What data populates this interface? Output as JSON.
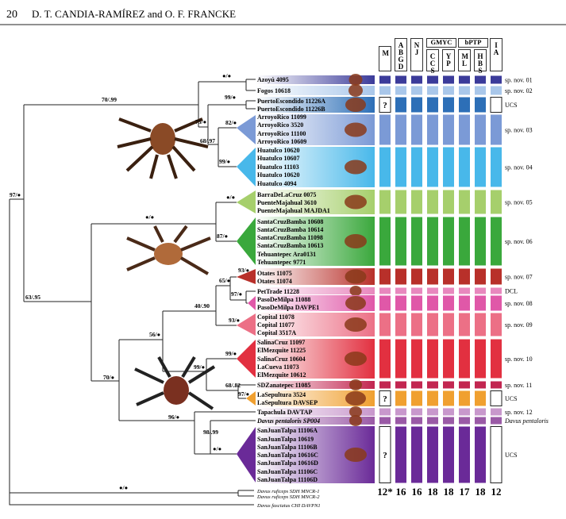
{
  "header": {
    "page": "20",
    "authors": "D. T. CANDIA-RAMÍREZ and O. F. FRANCKE"
  },
  "columns": {
    "groups": [
      "GMYC",
      "bPTP"
    ],
    "headers": [
      "M",
      "ABGD",
      "NJ",
      "CCS",
      "YP",
      "ML",
      "HBS",
      "IA"
    ],
    "totals": [
      "12*",
      16,
      16,
      18,
      18,
      17,
      18,
      12
    ]
  },
  "taxa": [
    "Azoyú 4095",
    "Fogos 10618",
    "PuertoEscondido 11226A",
    "PuertoEscondido 11226B",
    "ArroyoRico 11099",
    "ArroyoRico 3520",
    "ArroyoRico 11100",
    "ArroyoRico 10609",
    "Huatulco 10620",
    "Huatulco 10607",
    "Huatulco 11103",
    "Huatulco 10620",
    "Huatulco 4094",
    "BarraDeLaCruz 0075",
    "PuenteMajahual 3610",
    "PuenteMajahual MAJDA1",
    "SantaCruzBamba 10608",
    "SantaCruzBamba 10614",
    "SantaCruzBamba 11098",
    "SantaCruzBamba 10613",
    "Tehuantepec Ara0131",
    "Tehuantepec 9771",
    "Otates 11075",
    "Otates 11074",
    "PetTrade 11228",
    "PasoDeMilpa 11088",
    "PasoDeMilpa DAVPE1",
    "Copital 11078",
    "Copital 11077",
    "Copital 3517A",
    "SalinaCruz 11097",
    "ElMezquite 11225",
    "SalinaCruz 10604",
    "LaCueva 11073",
    "ElMezquite 10612",
    "SDZanatepec 11085",
    "LaSepultura 3524",
    "LaSepultura DAVSEP",
    "Tapachula DAVTAP",
    "Davus pentaloris SP004",
    "SanJuanTalpa 11106A",
    "SanJuanTalpa 10619",
    "SanJuanTalpa 11106B",
    "SanJuanTalpa 10616C",
    "SanJuanTalpa 10616D",
    "SanJuanTalpa 11106C",
    "SanJuanTalpa 11106D",
    "Davus ruficeps SDH MNCR-1",
    "Davus ruficeps SDH MNCR-2",
    "Davus fasciatus CHI DAVPN1"
  ],
  "supports": [
    "●/●",
    "70/.99",
    "99/●",
    "75/●",
    "82/●",
    "68/.97",
    "99/●",
    "97/●",
    "●/●",
    "●/●",
    "87/●",
    "63/.95",
    "93/●",
    "65/●",
    "97/●",
    "40/.90",
    "93/●",
    "56/●",
    "99/●",
    "99/●",
    "70/●",
    "68/.82",
    "97/●",
    "96/●",
    "98/.99",
    "●/●",
    "●/●"
  ],
  "clades": [
    {
      "label": "sp. nov. 01"
    },
    {
      "label": "sp. nov. 02"
    },
    {
      "label": "UCS",
      "m": "?"
    },
    {
      "label": "sp. nov. 03"
    },
    {
      "label": "sp. nov. 04"
    },
    {
      "label": "sp. nov. 05"
    },
    {
      "label": "sp. nov. 06"
    },
    {
      "label": "sp. nov. 07"
    },
    {
      "label": "DCL"
    },
    {
      "label": "sp. nov. 08"
    },
    {
      "label": "sp. nov. 09"
    },
    {
      "label": "sp. nov. 10"
    },
    {
      "label": "sp. nov. 11"
    },
    {
      "label": "UCS",
      "m": "?"
    },
    {
      "label": "sp. nov. 12"
    },
    {
      "label": "Davus pentaloris"
    },
    {
      "label": "UCS",
      "m": "?"
    }
  ]
}
